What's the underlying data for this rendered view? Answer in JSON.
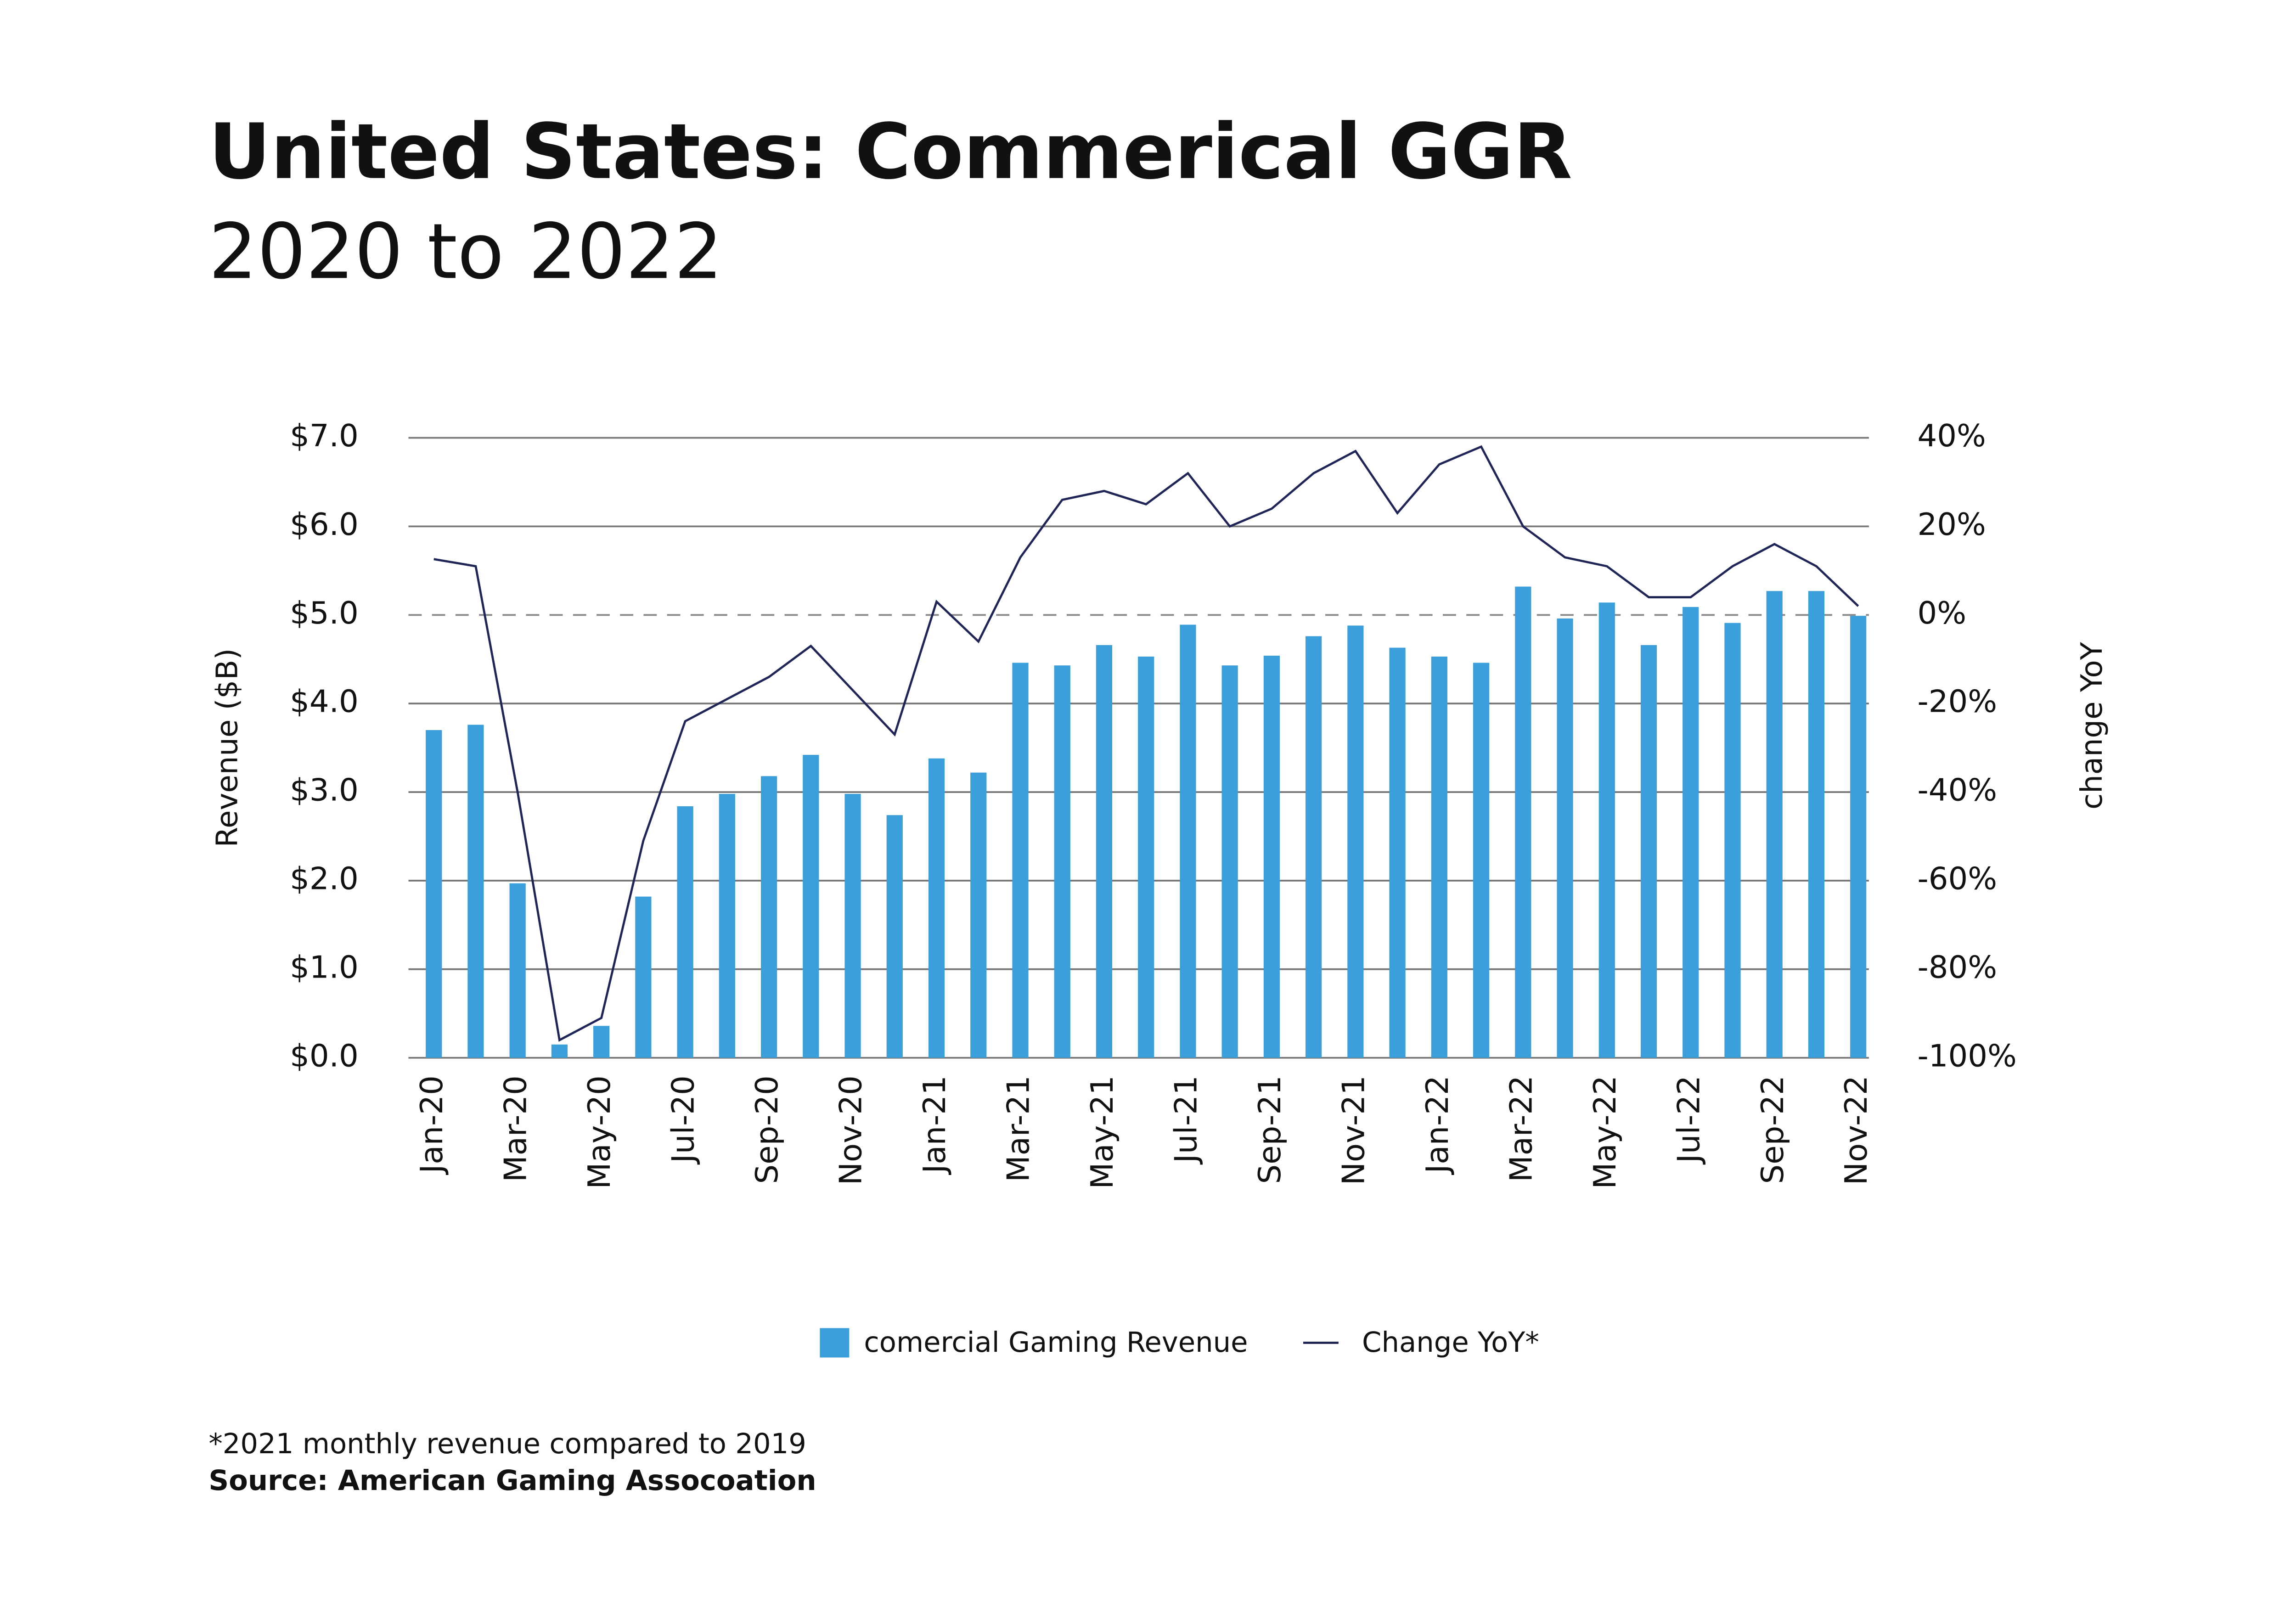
{
  "title": "United States: Commerical GGR",
  "subtitle": "2020 to 2022",
  "chart_data": {
    "type": "bar_line",
    "categories": [
      "Jan-20",
      null,
      "Mar-20",
      null,
      "May-20",
      null,
      "Jul-20",
      null,
      "Sep-20",
      null,
      "Nov-20",
      null,
      "Jan-21",
      null,
      "Mar-21",
      null,
      "May-21",
      null,
      "Jul-21",
      null,
      "Sep-21",
      null,
      "Nov-21",
      null,
      "Jan-22",
      null,
      "Mar-22",
      null,
      "May-22",
      null,
      "Jul-22",
      null,
      "Sep-22",
      null,
      "Nov-22"
    ],
    "series": [
      {
        "name": "comercial Gaming Revenue",
        "type": "bar",
        "color": "#3a9fdb",
        "values": [
          3.7,
          3.76,
          1.97,
          0.15,
          0.36,
          1.82,
          2.84,
          2.98,
          3.18,
          3.42,
          2.98,
          2.74,
          3.38,
          3.22,
          4.46,
          4.43,
          4.66,
          4.53,
          4.89,
          4.43,
          4.54,
          4.76,
          4.88,
          4.63,
          4.53,
          4.46,
          5.32,
          4.96,
          5.14,
          4.66,
          5.09,
          4.91,
          5.27,
          5.27,
          4.99
        ]
      },
      {
        "name": "Change YoY*",
        "type": "line",
        "axis": "y2",
        "color": "#1f2557",
        "values": [
          12.6,
          11,
          -40,
          -96,
          -91,
          -51,
          -24,
          -19,
          -14,
          -7,
          -17,
          -27,
          3,
          -6,
          13,
          26,
          28,
          25,
          32,
          20,
          24,
          32,
          37,
          23,
          34,
          38,
          20,
          13,
          11,
          4,
          4,
          11,
          16,
          11,
          2
        ]
      }
    ],
    "y_label": "Revenue ($B)",
    "y2_label": "change YoY",
    "ylim": [
      0,
      7
    ],
    "yticks": [
      {
        "value": 0,
        "label": "$0.0"
      },
      {
        "value": 1,
        "label": "$1.0"
      },
      {
        "value": 2,
        "label": "$2.0"
      },
      {
        "value": 3,
        "label": "$3.0"
      },
      {
        "value": 4,
        "label": "$4.0"
      },
      {
        "value": 5,
        "label": "$5.0"
      },
      {
        "value": 6,
        "label": "$6.0"
      },
      {
        "value": 7,
        "label": "$7.0"
      }
    ],
    "y2lim": [
      -100,
      40
    ],
    "y2ticks": [
      {
        "value": -100,
        "label": "-100%"
      },
      {
        "value": -80,
        "label": "-80%"
      },
      {
        "value": -60,
        "label": "-60%"
      },
      {
        "value": -40,
        "label": "-40%"
      },
      {
        "value": -20,
        "label": "-20%"
      },
      {
        "value": 0,
        "label": "0%"
      },
      {
        "value": 20,
        "label": "20%"
      },
      {
        "value": 40,
        "label": "40%"
      }
    ],
    "grid": true,
    "legend": "bottom"
  },
  "footnote": "*2021 monthly revenue compared to 2019",
  "source": "Source: American Gaming Assocoation"
}
